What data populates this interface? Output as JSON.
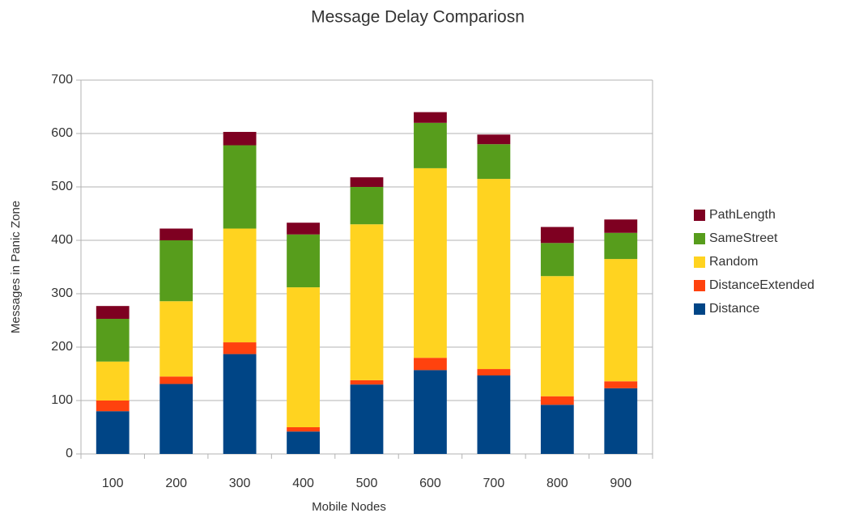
{
  "chart_data": {
    "type": "stacked_bar",
    "title": "Message Delay Compariosn",
    "x_label": "Mobile Nodes",
    "y_label": "Messages  in Panic Zone",
    "categories": [
      "100",
      "200",
      "300",
      "400",
      "500",
      "600",
      "700",
      "800",
      "900"
    ],
    "series": [
      {
        "name": "Distance",
        "color": "#004586",
        "values": [
          80,
          131,
          187,
          42,
          130,
          157,
          147,
          92,
          123
        ]
      },
      {
        "name": "DistanceExtended",
        "color": "#ff420e",
        "values": [
          20,
          14,
          22,
          8,
          8,
          23,
          12,
          16,
          13
        ]
      },
      {
        "name": "Random",
        "color": "#ffd320",
        "values": [
          73,
          141,
          213,
          262,
          292,
          355,
          356,
          225,
          229
        ]
      },
      {
        "name": "SameStreet",
        "color": "#579d1c",
        "values": [
          80,
          114,
          156,
          99,
          70,
          85,
          65,
          62,
          49
        ]
      },
      {
        "name": "PathLength",
        "color": "#7e0021",
        "values": [
          24,
          22,
          25,
          22,
          18,
          20,
          18,
          30,
          25
        ]
      }
    ],
    "ylim": [
      0,
      700
    ],
    "yticks": [
      0,
      100,
      200,
      300,
      400,
      500,
      600,
      700
    ],
    "grid": true,
    "legend": "right"
  }
}
